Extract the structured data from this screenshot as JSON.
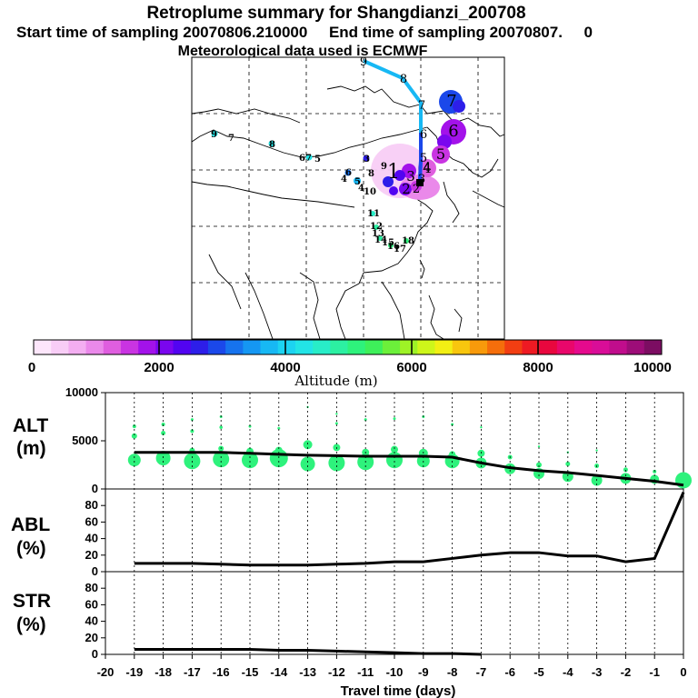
{
  "header": {
    "title": "Retroplume summary for Shangdianzi_200708",
    "line2": "Start time of sampling 20070806.210000     End time of sampling 20070807.     0",
    "line3": "Meteorological data used is ECMWF"
  },
  "colorbar": {
    "label": "Altitude (m)",
    "ticks": [
      "0",
      "2000",
      "4000",
      "6000",
      "8000",
      "10000"
    ],
    "colors": [
      "#fde6fb",
      "#f8cdf6",
      "#f3aef1",
      "#ea89ea",
      "#df5edf",
      "#c934e2",
      "#a312ea",
      "#7a06ef",
      "#5204f1",
      "#2d1ee9",
      "#1b48ea",
      "#1673ee",
      "#1597f3",
      "#17b8f4",
      "#1cd3f1",
      "#22e4e6",
      "#28edc8",
      "#2cf0a2",
      "#2ef27c",
      "#3ef05a",
      "#6cf03a",
      "#9ef226",
      "#cdf61a",
      "#f2ef14",
      "#f8c60e",
      "#f89a0b",
      "#f56e0b",
      "#f23e12",
      "#ee1a23",
      "#e9073e",
      "#e9076b",
      "#e50a8d",
      "#d90d98",
      "#c00d8c",
      "#9d0d78",
      "#7c0d62"
    ]
  },
  "map": {
    "trajectory_labels": [
      "9",
      "8",
      "7",
      "6",
      "5",
      "4",
      "3",
      "2"
    ],
    "plume_labels": [
      "7",
      "6",
      "5",
      "4",
      "3",
      "2",
      "1"
    ],
    "cluster_labels": [
      "9",
      "7",
      "8",
      "6",
      "7",
      "5",
      "3",
      "6",
      "8",
      "9",
      "4",
      "5",
      "4",
      "10",
      "11",
      "12",
      "13",
      "14",
      "15",
      "16",
      "17",
      "18"
    ]
  },
  "chart_data": [
    {
      "type": "line",
      "panel": "ALT",
      "ylabel": "ALT (m)",
      "ylim": [
        0,
        10000
      ],
      "yticks": [
        0,
        5000,
        10000
      ],
      "x": [
        -19,
        -18,
        -17,
        -16,
        -15,
        -14,
        -13,
        -12,
        -11,
        -10,
        -9,
        -8,
        -7,
        -6,
        -5,
        -4,
        -3,
        -2,
        -1,
        0
      ],
      "series": [
        {
          "name": "mean altitude",
          "values": [
            3800,
            3800,
            3800,
            3800,
            3700,
            3600,
            3500,
            3450,
            3400,
            3400,
            3400,
            3300,
            2700,
            2200,
            1900,
            1700,
            1400,
            1100,
            800,
            400
          ]
        }
      ],
      "scatter": {
        "name": "plume particles",
        "points": [
          {
            "x": -19,
            "y": 3000,
            "s": 7
          },
          {
            "x": -19,
            "y": 5500,
            "s": 3
          },
          {
            "x": -19,
            "y": 6500,
            "s": 2
          },
          {
            "x": -18,
            "y": 3200,
            "s": 8
          },
          {
            "x": -18,
            "y": 5800,
            "s": 2.5
          },
          {
            "x": -18,
            "y": 6700,
            "s": 2
          },
          {
            "x": -17,
            "y": 2900,
            "s": 9
          },
          {
            "x": -17,
            "y": 4000,
            "s": 3
          },
          {
            "x": -17,
            "y": 6000,
            "s": 2
          },
          {
            "x": -17,
            "y": 7200,
            "s": 1.5
          },
          {
            "x": -16,
            "y": 3100,
            "s": 9
          },
          {
            "x": -16,
            "y": 4200,
            "s": 3
          },
          {
            "x": -16,
            "y": 6400,
            "s": 1.8
          },
          {
            "x": -16,
            "y": 7500,
            "s": 1.5
          },
          {
            "x": -15,
            "y": 3000,
            "s": 9
          },
          {
            "x": -15,
            "y": 3900,
            "s": 4
          },
          {
            "x": -15,
            "y": 6500,
            "s": 1.5
          },
          {
            "x": -14,
            "y": 3200,
            "s": 10
          },
          {
            "x": -14,
            "y": 4000,
            "s": 4
          },
          {
            "x": -14,
            "y": 6300,
            "s": 1.5
          },
          {
            "x": -13,
            "y": 2600,
            "s": 8
          },
          {
            "x": -13,
            "y": 4600,
            "s": 5
          },
          {
            "x": -13,
            "y": 8500,
            "s": 1.2
          },
          {
            "x": -12,
            "y": 2700,
            "s": 9
          },
          {
            "x": -12,
            "y": 4300,
            "s": 4
          },
          {
            "x": -12,
            "y": 6800,
            "s": 1.5
          },
          {
            "x": -12,
            "y": 7800,
            "s": 1.2
          },
          {
            "x": -11,
            "y": 2800,
            "s": 9
          },
          {
            "x": -11,
            "y": 3800,
            "s": 4
          },
          {
            "x": -11,
            "y": 7200,
            "s": 1.5
          },
          {
            "x": -10,
            "y": 3000,
            "s": 9
          },
          {
            "x": -10,
            "y": 4100,
            "s": 4
          },
          {
            "x": -10,
            "y": 7300,
            "s": 1.5
          },
          {
            "x": -9,
            "y": 2900,
            "s": 7
          },
          {
            "x": -9,
            "y": 3700,
            "s": 5
          },
          {
            "x": -9,
            "y": 7500,
            "s": 1.5
          },
          {
            "x": -8,
            "y": 2900,
            "s": 8
          },
          {
            "x": -8,
            "y": 3600,
            "s": 3.5
          },
          {
            "x": -8,
            "y": 6700,
            "s": 1.5
          },
          {
            "x": -7,
            "y": 2700,
            "s": 6
          },
          {
            "x": -7,
            "y": 3700,
            "s": 4
          },
          {
            "x": -7,
            "y": 6400,
            "s": 1.2
          },
          {
            "x": -6,
            "y": 2100,
            "s": 6
          },
          {
            "x": -6,
            "y": 3300,
            "s": 2.5
          },
          {
            "x": -5,
            "y": 1600,
            "s": 6
          },
          {
            "x": -5,
            "y": 2500,
            "s": 3
          },
          {
            "x": -5,
            "y": 4400,
            "s": 1.2
          },
          {
            "x": -4,
            "y": 1300,
            "s": 6
          },
          {
            "x": -4,
            "y": 2600,
            "s": 2.5
          },
          {
            "x": -4,
            "y": 3800,
            "s": 1.2
          },
          {
            "x": -3,
            "y": 900,
            "s": 6
          },
          {
            "x": -3,
            "y": 2400,
            "s": 2.5
          },
          {
            "x": -3,
            "y": 4000,
            "s": 1.2
          },
          {
            "x": -2,
            "y": 1100,
            "s": 6
          },
          {
            "x": -2,
            "y": 2000,
            "s": 2.5
          },
          {
            "x": -1,
            "y": 1000,
            "s": 5
          },
          {
            "x": -1,
            "y": 1800,
            "s": 2
          },
          {
            "x": 0,
            "y": 900,
            "s": 9
          }
        ]
      }
    },
    {
      "type": "line",
      "panel": "ABL",
      "ylabel": "ABL (%)",
      "ylim": [
        0,
        100
      ],
      "yticks": [
        0,
        20,
        40,
        60,
        80
      ],
      "x": [
        -19,
        -18,
        -17,
        -16,
        -15,
        -14,
        -13,
        -12,
        -11,
        -10,
        -9,
        -8,
        -7,
        -6,
        -5,
        -4,
        -3,
        -2,
        -1,
        0
      ],
      "series": [
        {
          "name": "fraction in boundary layer",
          "values": [
            10,
            10,
            10,
            9,
            8,
            8,
            8,
            9,
            10,
            12,
            12,
            16,
            20,
            23,
            23,
            19,
            19,
            12,
            16,
            96
          ]
        }
      ]
    },
    {
      "type": "line",
      "panel": "STR",
      "ylabel": "STR (%)",
      "ylim": [
        0,
        100
      ],
      "yticks": [
        0,
        20,
        40,
        60,
        80
      ],
      "xlabel": "Travel time (days)",
      "xticks": [
        -20,
        -19,
        -18,
        -17,
        -16,
        -15,
        -14,
        -13,
        -12,
        -11,
        -10,
        -9,
        -8,
        -7,
        -6,
        -5,
        -4,
        -3,
        -2,
        -1,
        0
      ],
      "x": [
        -19,
        -18,
        -17,
        -16,
        -15,
        -14,
        -13,
        -12,
        -11,
        -10,
        -9,
        -8,
        -7
      ],
      "series": [
        {
          "name": "fraction in stratosphere",
          "values": [
            6,
            6,
            6,
            6,
            6,
            5,
            5,
            4,
            3,
            2,
            1,
            1,
            0
          ]
        }
      ]
    }
  ]
}
